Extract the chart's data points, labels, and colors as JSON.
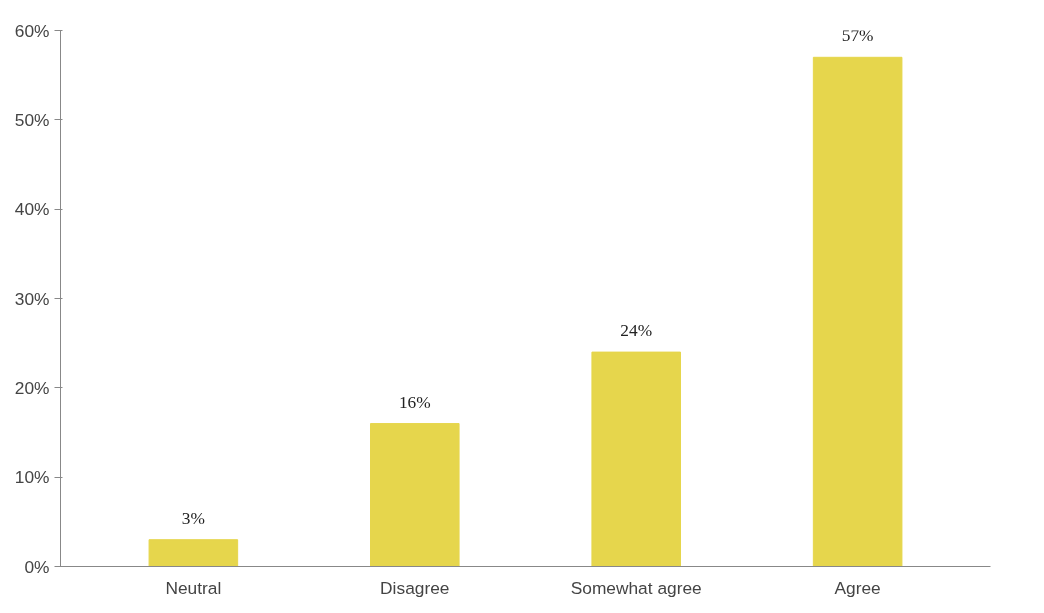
{
  "chart_data": {
    "type": "bar",
    "categories": [
      "Neutral",
      "Disagree",
      "Somewhat agree",
      "Agree"
    ],
    "values": [
      3,
      16,
      24,
      57
    ],
    "color": "#e6d64c",
    "value_labels": [
      "3%",
      "16%",
      "24%",
      "57%"
    ],
    "ylim": [
      0,
      60
    ],
    "yticks": [
      {
        "value": 0,
        "label": "0%"
      },
      {
        "value": 10,
        "label": "10%"
      },
      {
        "value": 20,
        "label": "20%"
      },
      {
        "value": 30,
        "label": "30%"
      },
      {
        "value": 40,
        "label": "40%"
      },
      {
        "value": 50,
        "label": "50%"
      },
      {
        "value": 60,
        "label": "60%"
      }
    ],
    "grid": false
  }
}
